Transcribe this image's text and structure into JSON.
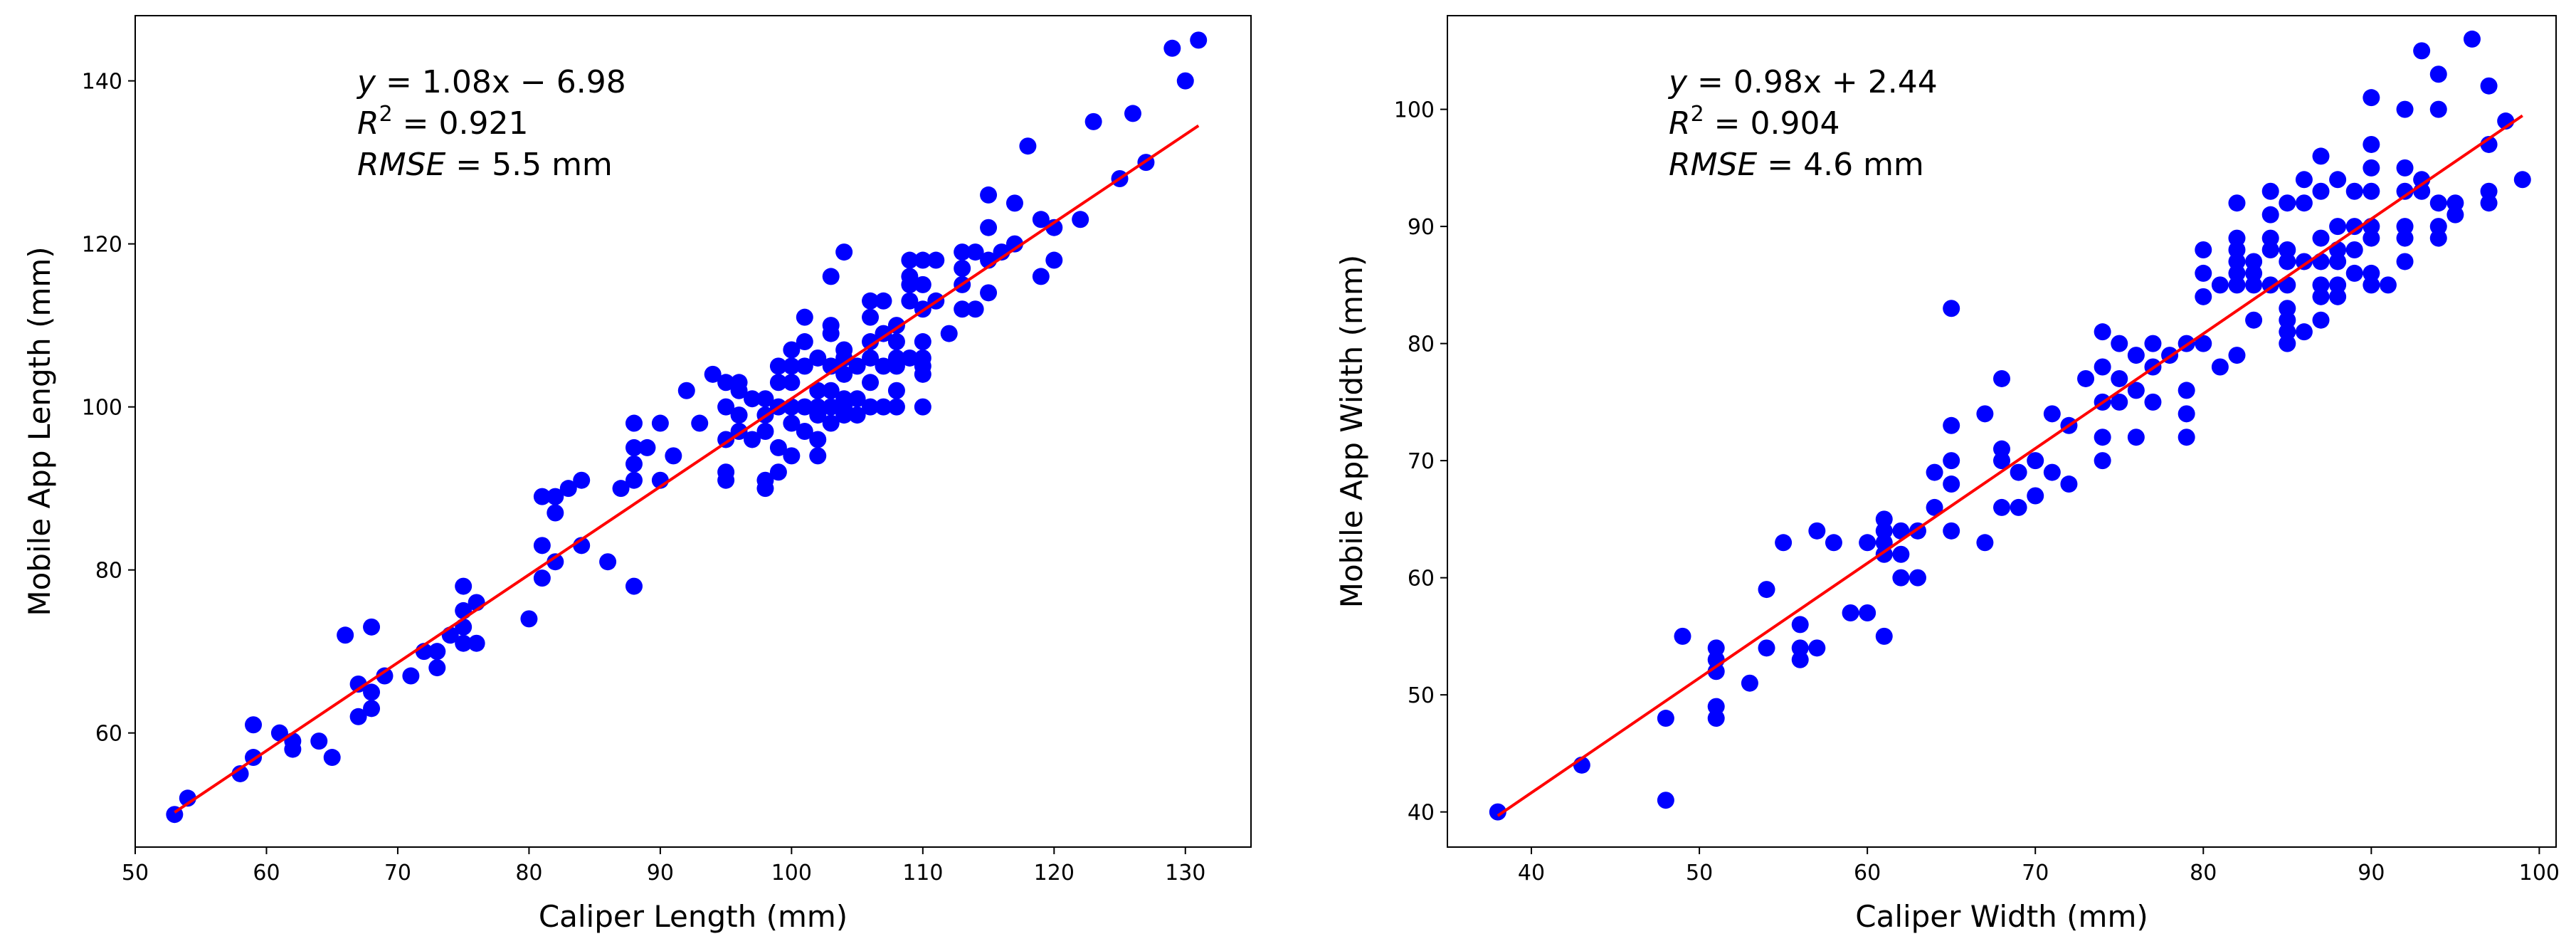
{
  "chart_data": [
    {
      "type": "scatter",
      "xlabel": "Caliper Length (mm)",
      "ylabel": "Mobile App Length (mm)",
      "xlim": [
        50,
        135
      ],
      "ylim": [
        46,
        148
      ],
      "xticks": [
        50,
        60,
        70,
        80,
        90,
        100,
        110,
        120,
        130
      ],
      "yticks": [
        60,
        80,
        100,
        120,
        140
      ],
      "grid": false,
      "point_color": "#0000ff",
      "line_color": "#ff0000",
      "fit": {
        "slope": 1.08,
        "intercept": -6.98,
        "x_range": [
          53,
          131
        ]
      },
      "annotation": {
        "equation_lhs": "y",
        "equation_rhs": " = 1.08x − 6.98",
        "r2_lhs": "R",
        "r2_sup": "2",
        "r2_rhs": " = 0.921",
        "rmse_lhs": "RMSE",
        "rmse_rhs": " = 5.5 mm"
      },
      "points": [
        [
          53,
          50
        ],
        [
          54,
          52
        ],
        [
          58,
          55
        ],
        [
          59,
          57
        ],
        [
          59,
          61
        ],
        [
          61,
          60
        ],
        [
          62,
          58
        ],
        [
          62,
          59
        ],
        [
          64,
          59
        ],
        [
          65,
          57
        ],
        [
          66,
          72
        ],
        [
          67,
          62
        ],
        [
          67,
          66
        ],
        [
          68,
          63
        ],
        [
          68,
          65
        ],
        [
          68,
          73
        ],
        [
          69,
          67
        ],
        [
          71,
          67
        ],
        [
          72,
          70
        ],
        [
          73,
          68
        ],
        [
          73,
          70
        ],
        [
          74,
          72
        ],
        [
          75,
          71
        ],
        [
          75,
          73
        ],
        [
          75,
          75
        ],
        [
          75,
          78
        ],
        [
          76,
          71
        ],
        [
          76,
          76
        ],
        [
          80,
          74
        ],
        [
          81,
          79
        ],
        [
          81,
          83
        ],
        [
          81,
          89
        ],
        [
          82,
          81
        ],
        [
          82,
          87
        ],
        [
          82,
          89
        ],
        [
          83,
          90
        ],
        [
          84,
          83
        ],
        [
          84,
          91
        ],
        [
          86,
          81
        ],
        [
          87,
          90
        ],
        [
          88,
          78
        ],
        [
          88,
          91
        ],
        [
          88,
          93
        ],
        [
          88,
          95
        ],
        [
          88,
          98
        ],
        [
          89,
          95
        ],
        [
          90,
          91
        ],
        [
          90,
          98
        ],
        [
          91,
          94
        ],
        [
          92,
          102
        ],
        [
          93,
          98
        ],
        [
          94,
          104
        ],
        [
          95,
          91
        ],
        [
          95,
          92
        ],
        [
          95,
          96
        ],
        [
          95,
          100
        ],
        [
          95,
          103
        ],
        [
          96,
          97
        ],
        [
          96,
          99
        ],
        [
          96,
          102
        ],
        [
          96,
          103
        ],
        [
          97,
          96
        ],
        [
          97,
          101
        ],
        [
          98,
          90
        ],
        [
          98,
          91
        ],
        [
          98,
          97
        ],
        [
          98,
          99
        ],
        [
          98,
          101
        ],
        [
          99,
          92
        ],
        [
          99,
          95
        ],
        [
          99,
          100
        ],
        [
          99,
          103
        ],
        [
          99,
          105
        ],
        [
          100,
          94
        ],
        [
          100,
          98
        ],
        [
          100,
          100
        ],
        [
          100,
          103
        ],
        [
          100,
          105
        ],
        [
          100,
          107
        ],
        [
          101,
          97
        ],
        [
          101,
          100
        ],
        [
          101,
          105
        ],
        [
          101,
          108
        ],
        [
          101,
          111
        ],
        [
          102,
          94
        ],
        [
          102,
          96
        ],
        [
          102,
          99
        ],
        [
          102,
          100
        ],
        [
          102,
          102
        ],
        [
          102,
          106
        ],
        [
          103,
          98
        ],
        [
          103,
          100
        ],
        [
          103,
          102
        ],
        [
          103,
          105
        ],
        [
          103,
          109
        ],
        [
          103,
          110
        ],
        [
          103,
          116
        ],
        [
          104,
          99
        ],
        [
          104,
          100
        ],
        [
          104,
          101
        ],
        [
          104,
          104
        ],
        [
          104,
          106
        ],
        [
          104,
          107
        ],
        [
          104,
          119
        ],
        [
          105,
          99
        ],
        [
          105,
          101
        ],
        [
          105,
          105
        ],
        [
          106,
          100
        ],
        [
          106,
          103
        ],
        [
          106,
          106
        ],
        [
          106,
          108
        ],
        [
          106,
          111
        ],
        [
          106,
          113
        ],
        [
          107,
          100
        ],
        [
          107,
          105
        ],
        [
          107,
          109
        ],
        [
          107,
          113
        ],
        [
          108,
          100
        ],
        [
          108,
          102
        ],
        [
          108,
          105
        ],
        [
          108,
          106
        ],
        [
          108,
          108
        ],
        [
          108,
          110
        ],
        [
          109,
          106
        ],
        [
          109,
          113
        ],
        [
          109,
          115
        ],
        [
          109,
          116
        ],
        [
          109,
          118
        ],
        [
          110,
          100
        ],
        [
          110,
          104
        ],
        [
          110,
          105
        ],
        [
          110,
          106
        ],
        [
          110,
          108
        ],
        [
          110,
          112
        ],
        [
          110,
          115
        ],
        [
          110,
          118
        ],
        [
          111,
          113
        ],
        [
          111,
          118
        ],
        [
          112,
          109
        ],
        [
          113,
          112
        ],
        [
          113,
          115
        ],
        [
          113,
          117
        ],
        [
          113,
          119
        ],
        [
          114,
          112
        ],
        [
          114,
          119
        ],
        [
          115,
          114
        ],
        [
          115,
          118
        ],
        [
          115,
          122
        ],
        [
          115,
          126
        ],
        [
          116,
          119
        ],
        [
          117,
          120
        ],
        [
          117,
          125
        ],
        [
          118,
          132
        ],
        [
          119,
          116
        ],
        [
          119,
          123
        ],
        [
          120,
          118
        ],
        [
          120,
          122
        ],
        [
          122,
          123
        ],
        [
          123,
          135
        ],
        [
          125,
          128
        ],
        [
          126,
          136
        ],
        [
          127,
          130
        ],
        [
          129,
          144
        ],
        [
          130,
          140
        ],
        [
          131,
          145
        ]
      ]
    },
    {
      "type": "scatter",
      "xlabel": "Caliper Width (mm)",
      "ylabel": "Mobile App Width (mm)",
      "xlim": [
        35,
        101
      ],
      "ylim": [
        37,
        108
      ],
      "xticks": [
        40,
        50,
        60,
        70,
        80,
        90,
        100
      ],
      "yticks": [
        40,
        50,
        60,
        70,
        80,
        90,
        100
      ],
      "grid": false,
      "point_color": "#0000ff",
      "line_color": "#ff0000",
      "fit": {
        "slope": 0.98,
        "intercept": 2.44,
        "x_range": [
          38,
          99
        ]
      },
      "annotation": {
        "equation_lhs": "y",
        "equation_rhs": " = 0.98x + 2.44",
        "r2_lhs": "R",
        "r2_sup": "2",
        "r2_rhs": " = 0.904",
        "rmse_lhs": "RMSE",
        "rmse_rhs": " = 4.6 mm"
      },
      "points": [
        [
          38,
          40
        ],
        [
          43,
          44
        ],
        [
          48,
          41
        ],
        [
          48,
          48
        ],
        [
          49,
          55
        ],
        [
          51,
          48
        ],
        [
          51,
          49
        ],
        [
          51,
          52
        ],
        [
          51,
          53
        ],
        [
          51,
          54
        ],
        [
          53,
          51
        ],
        [
          54,
          54
        ],
        [
          54,
          59
        ],
        [
          55,
          63
        ],
        [
          56,
          53
        ],
        [
          56,
          54
        ],
        [
          56,
          56
        ],
        [
          57,
          54
        ],
        [
          57,
          64
        ],
        [
          58,
          63
        ],
        [
          59,
          57
        ],
        [
          60,
          57
        ],
        [
          60,
          63
        ],
        [
          61,
          55
        ],
        [
          61,
          62
        ],
        [
          61,
          63
        ],
        [
          61,
          64
        ],
        [
          61,
          65
        ],
        [
          62,
          60
        ],
        [
          62,
          62
        ],
        [
          62,
          64
        ],
        [
          63,
          60
        ],
        [
          63,
          64
        ],
        [
          64,
          66
        ],
        [
          64,
          69
        ],
        [
          65,
          64
        ],
        [
          65,
          68
        ],
        [
          65,
          70
        ],
        [
          65,
          73
        ],
        [
          65,
          83
        ],
        [
          67,
          63
        ],
        [
          67,
          74
        ],
        [
          68,
          66
        ],
        [
          68,
          70
        ],
        [
          68,
          71
        ],
        [
          68,
          77
        ],
        [
          69,
          66
        ],
        [
          69,
          69
        ],
        [
          70,
          67
        ],
        [
          70,
          70
        ],
        [
          71,
          69
        ],
        [
          71,
          74
        ],
        [
          72,
          68
        ],
        [
          72,
          73
        ],
        [
          73,
          77
        ],
        [
          74,
          70
        ],
        [
          74,
          72
        ],
        [
          74,
          75
        ],
        [
          74,
          78
        ],
        [
          74,
          81
        ],
        [
          75,
          75
        ],
        [
          75,
          77
        ],
        [
          75,
          80
        ],
        [
          76,
          72
        ],
        [
          76,
          76
        ],
        [
          76,
          79
        ],
        [
          77,
          75
        ],
        [
          77,
          78
        ],
        [
          77,
          80
        ],
        [
          78,
          79
        ],
        [
          79,
          72
        ],
        [
          79,
          74
        ],
        [
          79,
          76
        ],
        [
          79,
          80
        ],
        [
          80,
          80
        ],
        [
          80,
          84
        ],
        [
          80,
          86
        ],
        [
          80,
          88
        ],
        [
          81,
          78
        ],
        [
          81,
          85
        ],
        [
          82,
          79
        ],
        [
          82,
          85
        ],
        [
          82,
          86
        ],
        [
          82,
          87
        ],
        [
          82,
          88
        ],
        [
          82,
          89
        ],
        [
          82,
          92
        ],
        [
          83,
          82
        ],
        [
          83,
          85
        ],
        [
          83,
          86
        ],
        [
          83,
          87
        ],
        [
          84,
          85
        ],
        [
          84,
          88
        ],
        [
          84,
          89
        ],
        [
          84,
          91
        ],
        [
          84,
          93
        ],
        [
          85,
          80
        ],
        [
          85,
          81
        ],
        [
          85,
          82
        ],
        [
          85,
          83
        ],
        [
          85,
          85
        ],
        [
          85,
          87
        ],
        [
          85,
          88
        ],
        [
          85,
          92
        ],
        [
          86,
          81
        ],
        [
          86,
          87
        ],
        [
          86,
          92
        ],
        [
          86,
          94
        ],
        [
          87,
          82
        ],
        [
          87,
          84
        ],
        [
          87,
          85
        ],
        [
          87,
          87
        ],
        [
          87,
          89
        ],
        [
          87,
          93
        ],
        [
          87,
          96
        ],
        [
          88,
          84
        ],
        [
          88,
          85
        ],
        [
          88,
          87
        ],
        [
          88,
          88
        ],
        [
          88,
          90
        ],
        [
          88,
          94
        ],
        [
          89,
          86
        ],
        [
          89,
          88
        ],
        [
          89,
          90
        ],
        [
          89,
          93
        ],
        [
          90,
          85
        ],
        [
          90,
          86
        ],
        [
          90,
          89
        ],
        [
          90,
          90
        ],
        [
          90,
          93
        ],
        [
          90,
          95
        ],
        [
          90,
          97
        ],
        [
          90,
          101
        ],
        [
          91,
          85
        ],
        [
          92,
          87
        ],
        [
          92,
          89
        ],
        [
          92,
          90
        ],
        [
          92,
          93
        ],
        [
          92,
          95
        ],
        [
          92,
          100
        ],
        [
          93,
          93
        ],
        [
          93,
          94
        ],
        [
          93,
          105
        ],
        [
          94,
          89
        ],
        [
          94,
          90
        ],
        [
          94,
          92
        ],
        [
          94,
          100
        ],
        [
          94,
          103
        ],
        [
          95,
          91
        ],
        [
          95,
          92
        ],
        [
          96,
          106
        ],
        [
          97,
          92
        ],
        [
          97,
          93
        ],
        [
          97,
          97
        ],
        [
          97,
          102
        ],
        [
          98,
          99
        ],
        [
          99,
          94
        ]
      ]
    }
  ]
}
